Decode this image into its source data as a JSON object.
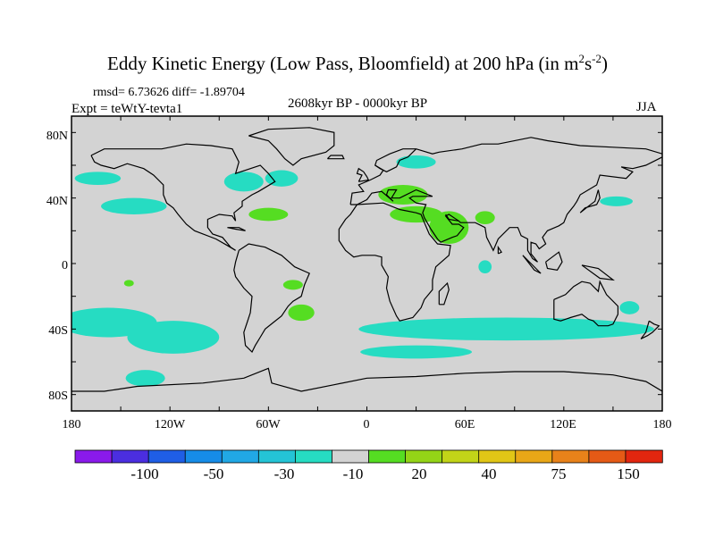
{
  "header": {
    "title": "Eddy Kinetic Energy (Low Pass, Bloomfield) at 200 hPa (in m",
    "title_sup1": "2",
    "title_mid": "s",
    "title_sup2": "-2",
    "title_end": ")",
    "stats": "rmsd= 6.73626 diff= -1.89704",
    "expt": "Expt = teWtY-tevta1",
    "period": "2608kyr BP - 0000kyr BP",
    "season": "JJA"
  },
  "map": {
    "projection": "cylindrical-equidistant",
    "lon_range": [
      -180,
      180
    ],
    "lat_range": [
      -90,
      90
    ],
    "background_color": "#d3d3d3",
    "lat_ticks": [
      "80N",
      "40N",
      "0",
      "40S",
      "80S"
    ],
    "lon_ticks": [
      "180",
      "120W",
      "60W",
      "0",
      "60E",
      "120E",
      "180"
    ],
    "anomaly_regions": [
      {
        "lon": -164,
        "lat": 52,
        "rx": 14,
        "ry": 4,
        "sign": "negative"
      },
      {
        "lon": -142,
        "lat": 35,
        "rx": 20,
        "ry": 5,
        "sign": "negative"
      },
      {
        "lon": -75,
        "lat": 50,
        "rx": 12,
        "ry": 6,
        "sign": "negative"
      },
      {
        "lon": -52,
        "lat": 52,
        "rx": 10,
        "ry": 5,
        "sign": "negative"
      },
      {
        "lon": 30,
        "lat": 62,
        "rx": 12,
        "ry": 4,
        "sign": "negative"
      },
      {
        "lon": -158,
        "lat": -36,
        "rx": 30,
        "ry": 9,
        "sign": "negative"
      },
      {
        "lon": -118,
        "lat": -45,
        "rx": 28,
        "ry": 10,
        "sign": "negative"
      },
      {
        "lon": -135,
        "lat": -70,
        "rx": 12,
        "ry": 5,
        "sign": "negative"
      },
      {
        "lon": 85,
        "lat": -40,
        "rx": 90,
        "ry": 7,
        "sign": "negative"
      },
      {
        "lon": 30,
        "lat": -54,
        "rx": 34,
        "ry": 4,
        "sign": "negative"
      },
      {
        "lon": 72,
        "lat": -2,
        "rx": 4,
        "ry": 4,
        "sign": "negative"
      },
      {
        "lon": 152,
        "lat": 38,
        "rx": 10,
        "ry": 3,
        "sign": "negative"
      },
      {
        "lon": 160,
        "lat": -27,
        "rx": 6,
        "ry": 4,
        "sign": "negative"
      },
      {
        "lon": 22,
        "lat": 42,
        "rx": 15,
        "ry": 6,
        "sign": "positive"
      },
      {
        "lon": 30,
        "lat": 30,
        "rx": 16,
        "ry": 5,
        "sign": "positive"
      },
      {
        "lon": 50,
        "lat": 22,
        "rx": 12,
        "ry": 10,
        "sign": "positive"
      },
      {
        "lon": 72,
        "lat": 28,
        "rx": 6,
        "ry": 4,
        "sign": "positive"
      },
      {
        "lon": -60,
        "lat": 30,
        "rx": 12,
        "ry": 4,
        "sign": "positive"
      },
      {
        "lon": -40,
        "lat": -30,
        "rx": 8,
        "ry": 5,
        "sign": "positive"
      },
      {
        "lon": -45,
        "lat": -13,
        "rx": 6,
        "ry": 3,
        "sign": "positive"
      },
      {
        "lon": -145,
        "lat": -12,
        "rx": 3,
        "ry": 2,
        "sign": "positive"
      }
    ]
  },
  "colorbar": {
    "colors": [
      "#8a1aeb",
      "#4b2ee0",
      "#1f5ee6",
      "#168ce8",
      "#21a8e5",
      "#24c4d6",
      "#26dcc2",
      "#d3d3d3",
      "#55dd22",
      "#94d417",
      "#c2d418",
      "#e1c616",
      "#e9a717",
      "#e8821a",
      "#e55a16",
      "#e2260f"
    ],
    "labels": [
      "-100",
      "-50",
      "-30",
      "-10",
      "20",
      "40",
      "75",
      "150"
    ]
  },
  "colors": {
    "negative_fill": "#26dcc2",
    "positive_fill": "#55dd22",
    "land_outline": "#000000",
    "frame": "#000000"
  }
}
